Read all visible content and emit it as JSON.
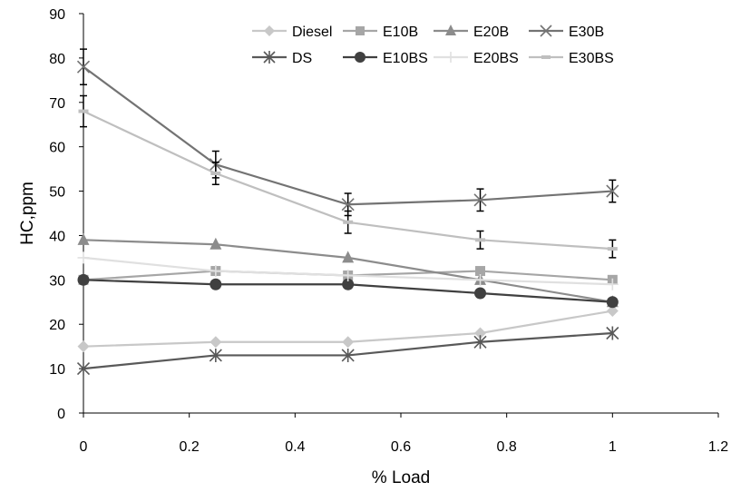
{
  "chart_data": {
    "type": "line",
    "title": "",
    "xlabel": "% Load",
    "ylabel": "HC,ppm",
    "xlim": [
      0,
      1.2
    ],
    "ylim": [
      0,
      90
    ],
    "x_ticks": [
      0,
      0.2,
      0.4,
      0.6,
      0.8,
      1,
      1.2
    ],
    "y_ticks": [
      0,
      10,
      20,
      30,
      40,
      50,
      60,
      70,
      80,
      90
    ],
    "x_tick_labels": [
      "0",
      "0.2",
      "0.4",
      "0.6",
      "0.8",
      "1",
      "1.2"
    ],
    "y_tick_labels": [
      "0",
      "10",
      "20",
      "30",
      "40",
      "50",
      "60",
      "70",
      "80",
      "90"
    ],
    "grid": false,
    "legend_position": "top-right",
    "x": [
      0,
      0.25,
      0.5,
      0.75,
      1
    ],
    "series": [
      {
        "name": "Diesel",
        "marker": "diamond",
        "color": "#c8c8c8",
        "values": [
          15,
          16,
          16,
          18,
          23
        ]
      },
      {
        "name": "E10B",
        "marker": "square",
        "color": "#a6a6a6",
        "values": [
          30,
          32,
          31,
          32,
          30
        ]
      },
      {
        "name": "E20B",
        "marker": "triangle",
        "color": "#8c8c8c",
        "values": [
          39,
          38,
          35,
          30,
          25
        ]
      },
      {
        "name": "E30B",
        "marker": "x",
        "color": "#737373",
        "values": [
          78,
          56,
          47,
          48,
          50
        ],
        "error": [
          4,
          3,
          2.5,
          2.5,
          2.5
        ]
      },
      {
        "name": "DS",
        "marker": "star",
        "color": "#595959",
        "values": [
          10,
          13,
          13,
          16,
          18
        ]
      },
      {
        "name": "E10BS",
        "marker": "circle",
        "color": "#404040",
        "values": [
          30,
          29,
          29,
          27,
          25
        ]
      },
      {
        "name": "E20BS",
        "marker": "plus",
        "color": "#e0e0e0",
        "values": [
          35,
          32,
          31,
          30,
          29
        ]
      },
      {
        "name": "E30BS",
        "marker": "dash",
        "color": "#bfbfbf",
        "values": [
          68,
          54,
          43,
          39,
          37
        ],
        "error": [
          3.5,
          2.5,
          2.5,
          2,
          2
        ]
      }
    ]
  }
}
